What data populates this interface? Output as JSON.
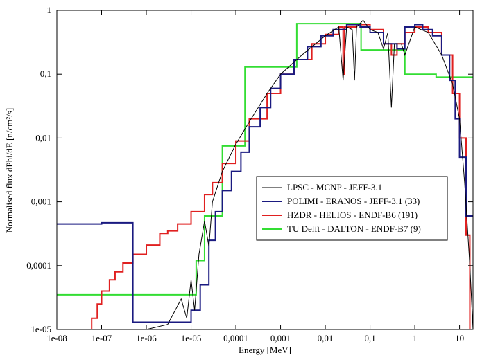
{
  "chart_data": {
    "type": "line",
    "x_label": "Energy [MeV]",
    "y_label": "Normalised flux dPhi/dE [n/cm²/s]",
    "xscale": "log",
    "yscale": "log",
    "xlim": [
      1e-08,
      20
    ],
    "ylim": [
      1e-05,
      1
    ],
    "xticks": [
      {
        "value": 1e-08,
        "label": "1e-08"
      },
      {
        "value": 1e-07,
        "label": "1e-07"
      },
      {
        "value": 1e-06,
        "label": "1e-06"
      },
      {
        "value": 1e-05,
        "label": "1e-05"
      },
      {
        "value": 0.0001,
        "label": "0,0001"
      },
      {
        "value": 0.001,
        "label": "0,001"
      },
      {
        "value": 0.01,
        "label": "0,01"
      },
      {
        "value": 0.1,
        "label": "0,1"
      },
      1,
      10
    ],
    "yticks": [
      {
        "value": 1e-05,
        "label": "1e-05"
      },
      {
        "value": 0.0001,
        "label": "0,0001"
      },
      {
        "value": 0.001,
        "label": "0,001"
      },
      {
        "value": 0.01,
        "label": "0,01"
      },
      {
        "value": 0.1,
        "label": "0,1"
      },
      1
    ],
    "grid": false,
    "legend_position": "right",
    "series": [
      {
        "name": "LPSC - MCNP - JEFF-3.1",
        "color": "#000000",
        "step": false,
        "x": [
          1e-06,
          3e-06,
          6e-06,
          8e-06,
          1e-05,
          1.2e-05,
          1.5e-05,
          2e-05,
          2.5e-05,
          3e-05,
          5e-05,
          0.0001,
          0.0002,
          0.0005,
          0.001,
          0.003,
          0.01,
          0.02,
          0.025,
          0.03,
          0.04,
          0.045,
          0.05,
          0.07,
          0.1,
          0.15,
          0.2,
          0.25,
          0.3,
          0.35,
          0.5,
          0.6,
          1,
          2,
          4,
          7,
          10,
          13,
          17,
          20
        ],
        "values": [
          1e-05,
          1.2e-05,
          3e-05,
          1.5e-05,
          6e-05,
          2e-05,
          0.00015,
          0.0005,
          0.0002,
          0.001,
          0.003,
          0.008,
          0.018,
          0.05,
          0.1,
          0.2,
          0.4,
          0.55,
          0.08,
          0.55,
          0.5,
          0.08,
          0.55,
          0.7,
          0.5,
          0.45,
          0.25,
          0.45,
          0.03,
          0.3,
          0.3,
          0.2,
          0.55,
          0.45,
          0.2,
          0.07,
          0.02,
          0.002,
          0.0001,
          1e-05
        ]
      },
      {
        "name": "POLIMI - ERANOS - JEFF-3.1 (33)",
        "color": "#1a1a80",
        "step": true,
        "x": [
          1e-08,
          1e-07,
          5e-07,
          1e-05,
          1.6e-05,
          2.5e-05,
          3.5e-05,
          5e-05,
          8e-05,
          0.00013,
          0.0002,
          0.00035,
          0.0006,
          0.001,
          0.002,
          0.004,
          0.008,
          0.015,
          0.03,
          0.06,
          0.1,
          0.2,
          0.4,
          0.6,
          1,
          1.5,
          2.5,
          4,
          6,
          8,
          10,
          14,
          20
        ],
        "values": [
          0.00045,
          0.00047,
          1.3e-05,
          2e-05,
          5e-05,
          0.00025,
          0.0007,
          0.0015,
          0.003,
          0.006,
          0.015,
          0.03,
          0.06,
          0.1,
          0.17,
          0.27,
          0.4,
          0.5,
          0.6,
          0.55,
          0.45,
          0.3,
          0.25,
          0.55,
          0.6,
          0.5,
          0.4,
          0.2,
          0.08,
          0.02,
          0.005,
          0.0006,
          0.0006
        ]
      },
      {
        "name": "HZDR - HELIOS - ENDF-B6 (191)",
        "color": "#e02020",
        "step": true,
        "x": [
          4.5e-08,
          6e-08,
          8e-08,
          1e-07,
          1.5e-07,
          2e-07,
          3e-07,
          5e-07,
          1e-06,
          2e-06,
          3e-06,
          5e-06,
          1e-05,
          2e-05,
          3e-05,
          5e-05,
          0.0001,
          0.0002,
          0.0005,
          0.001,
          0.002,
          0.005,
          0.01,
          0.02,
          0.025,
          0.027,
          0.05,
          0.1,
          0.2,
          0.3,
          0.4,
          0.6,
          1,
          2,
          4,
          7,
          10,
          14,
          17
        ],
        "values": [
          8e-06,
          1.5e-05,
          2.5e-05,
          4e-05,
          6e-05,
          8e-05,
          0.00011,
          0.00015,
          0.00021,
          0.00032,
          0.00035,
          0.00045,
          0.0007,
          0.0013,
          0.002,
          0.004,
          0.009,
          0.02,
          0.05,
          0.1,
          0.17,
          0.3,
          0.42,
          0.55,
          0.1,
          0.55,
          0.6,
          0.5,
          0.3,
          0.2,
          0.3,
          0.45,
          0.55,
          0.45,
          0.2,
          0.05,
          0.01,
          0.0003,
          1e-05
        ]
      },
      {
        "name": "TU Delft - DALTON - ENDF-B7 (9)",
        "color": "#33dd33",
        "step": true,
        "x": [
          1e-08,
          1.3e-05,
          2e-05,
          5e-05,
          0.00016,
          0.0023,
          0.063,
          0.6,
          3,
          20
        ],
        "values": [
          3.5e-05,
          0.00012,
          0.0006,
          0.0075,
          0.13,
          0.62,
          0.24,
          0.1,
          0.09,
          0.09
        ]
      }
    ]
  }
}
